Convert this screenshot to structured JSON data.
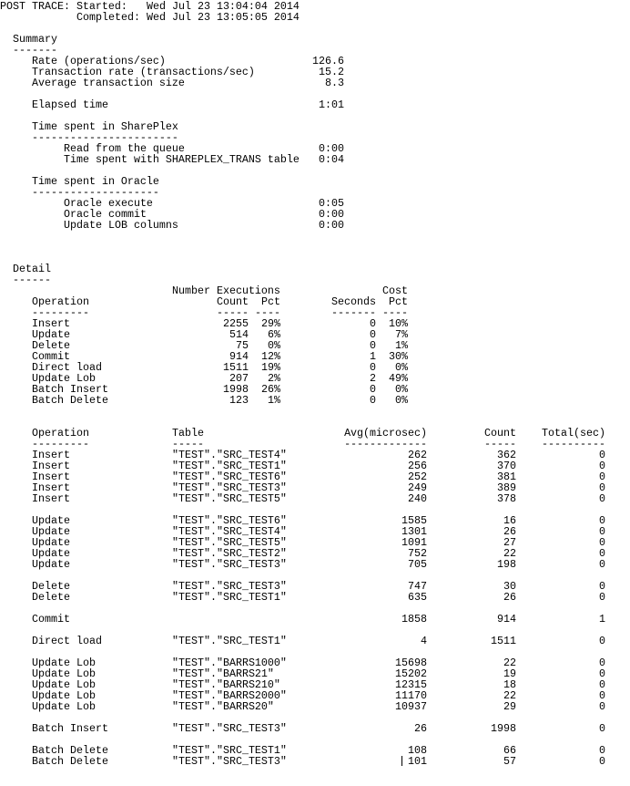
{
  "header": {
    "started_label": "POST TRACE: Started:",
    "started_value": "Wed Jul 23 13:04:04 2014",
    "completed_label": "Completed:",
    "completed_value": "Wed Jul 23 13:05:05 2014"
  },
  "summary": {
    "title": "Summary",
    "underline": "-------",
    "metrics": [
      {
        "label": "Rate (operations/sec)",
        "value": "126.6"
      },
      {
        "label": "Transaction rate (transactions/sec)",
        "value": "15.2"
      },
      {
        "label": "Average transaction size",
        "value": "8.3"
      }
    ],
    "elapsed": {
      "label": "Elapsed time",
      "value": "1:01"
    },
    "shareplex": {
      "title": "Time spent in SharePlex",
      "underline": "-----------------------",
      "items": [
        {
          "label": "Read from the queue",
          "value": "0:00"
        },
        {
          "label": "Time spent with SHAREPLEX_TRANS table",
          "value": "0:04"
        }
      ]
    },
    "oracle": {
      "title": "Time spent in Oracle",
      "underline": "--------------------",
      "items": [
        {
          "label": "Oracle execute",
          "value": "0:05"
        },
        {
          "label": "Oracle commit",
          "value": "0:00"
        },
        {
          "label": "Update LOB columns",
          "value": "0:00"
        }
      ]
    }
  },
  "detail": {
    "title": "Detail",
    "underline": "------",
    "ops_table": {
      "header_top": {
        "executions": "Number Executions",
        "cost": "Cost"
      },
      "headers": {
        "operation": "Operation",
        "count": "Count",
        "pct": "Pct",
        "seconds": "Seconds",
        "cost_pct": "Pct"
      },
      "underlines": {
        "operation": "---------",
        "count": "-----",
        "pct": "----",
        "seconds": "-------",
        "cost_pct": "----"
      },
      "rows": [
        {
          "operation": "Insert",
          "count": "2255",
          "pct": "29%",
          "seconds": "0",
          "cost_pct": "10%"
        },
        {
          "operation": "Update",
          "count": "514",
          "pct": "6%",
          "seconds": "0",
          "cost_pct": "7%"
        },
        {
          "operation": "Delete",
          "count": "75",
          "pct": "0%",
          "seconds": "0",
          "cost_pct": "1%"
        },
        {
          "operation": "Commit",
          "count": "914",
          "pct": "12%",
          "seconds": "1",
          "cost_pct": "30%"
        },
        {
          "operation": "Direct load",
          "count": "1511",
          "pct": "19%",
          "seconds": "0",
          "cost_pct": "0%"
        },
        {
          "operation": "Update Lob",
          "count": "207",
          "pct": "2%",
          "seconds": "2",
          "cost_pct": "49%"
        },
        {
          "operation": "Batch Insert",
          "count": "1998",
          "pct": "26%",
          "seconds": "0",
          "cost_pct": "0%"
        },
        {
          "operation": "Batch Delete",
          "count": "123",
          "pct": "1%",
          "seconds": "0",
          "cost_pct": "0%"
        }
      ]
    },
    "table_stats": {
      "headers": {
        "operation": "Operation",
        "table": "Table",
        "avg": "Avg(microsec)",
        "count": "Count",
        "total": "Total(sec)"
      },
      "underlines": {
        "operation": "---------",
        "table": "-----",
        "avg": "-------------",
        "count": "-----",
        "total": "----------"
      },
      "groups": [
        [
          {
            "operation": "Insert",
            "table": "\"TEST\".\"SRC_TEST4\"",
            "avg": "262",
            "count": "362",
            "total": "0"
          },
          {
            "operation": "Insert",
            "table": "\"TEST\".\"SRC_TEST1\"",
            "avg": "256",
            "count": "370",
            "total": "0"
          },
          {
            "operation": "Insert",
            "table": "\"TEST\".\"SRC_TEST6\"",
            "avg": "252",
            "count": "381",
            "total": "0"
          },
          {
            "operation": "Insert",
            "table": "\"TEST\".\"SRC_TEST3\"",
            "avg": "249",
            "count": "389",
            "total": "0"
          },
          {
            "operation": "Insert",
            "table": "\"TEST\".\"SRC_TEST5\"",
            "avg": "240",
            "count": "378",
            "total": "0"
          }
        ],
        [
          {
            "operation": "Update",
            "table": "\"TEST\".\"SRC_TEST6\"",
            "avg": "1585",
            "count": "16",
            "total": "0"
          },
          {
            "operation": "Update",
            "table": "\"TEST\".\"SRC_TEST4\"",
            "avg": "1301",
            "count": "26",
            "total": "0"
          },
          {
            "operation": "Update",
            "table": "\"TEST\".\"SRC_TEST5\"",
            "avg": "1091",
            "count": "27",
            "total": "0"
          },
          {
            "operation": "Update",
            "table": "\"TEST\".\"SRC_TEST2\"",
            "avg": "752",
            "count": "22",
            "total": "0"
          },
          {
            "operation": "Update",
            "table": "\"TEST\".\"SRC_TEST3\"",
            "avg": "705",
            "count": "198",
            "total": "0"
          }
        ],
        [
          {
            "operation": "Delete",
            "table": "\"TEST\".\"SRC_TEST3\"",
            "avg": "747",
            "count": "30",
            "total": "0"
          },
          {
            "operation": "Delete",
            "table": "\"TEST\".\"SRC_TEST1\"",
            "avg": "635",
            "count": "26",
            "total": "0"
          }
        ],
        [
          {
            "operation": "Commit",
            "table": "",
            "avg": "1858",
            "count": "914",
            "total": "1"
          }
        ],
        [
          {
            "operation": "Direct load",
            "table": "\"TEST\".\"SRC_TEST1\"",
            "avg": "4",
            "count": "1511",
            "total": "0"
          }
        ],
        [
          {
            "operation": "Update Lob",
            "table": "\"TEST\".\"BARRS1000\"",
            "avg": "15698",
            "count": "22",
            "total": "0"
          },
          {
            "operation": "Update Lob",
            "table": "\"TEST\".\"BARRS21\"",
            "avg": "15202",
            "count": "19",
            "total": "0"
          },
          {
            "operation": "Update Lob",
            "table": "\"TEST\".\"BARRS210\"",
            "avg": "12315",
            "count": "18",
            "total": "0"
          },
          {
            "operation": "Update Lob",
            "table": "\"TEST\".\"BARRS2000\"",
            "avg": "11170",
            "count": "22",
            "total": "0"
          },
          {
            "operation": "Update Lob",
            "table": "\"TEST\".\"BARRS20\"",
            "avg": "10937",
            "count": "29",
            "total": "0"
          }
        ],
        [
          {
            "operation": "Batch Insert",
            "table": "\"TEST\".\"SRC_TEST3\"",
            "avg": "26",
            "count": "1998",
            "total": "0"
          }
        ],
        [
          {
            "operation": "Batch Delete",
            "table": "\"TEST\".\"SRC_TEST1\"",
            "avg": "108",
            "count": "66",
            "total": "0"
          },
          {
            "operation": "Batch Delete",
            "table": "\"TEST\".\"SRC_TEST3\"",
            "avg": "101",
            "count": "57",
            "total": "0"
          }
        ]
      ]
    }
  }
}
